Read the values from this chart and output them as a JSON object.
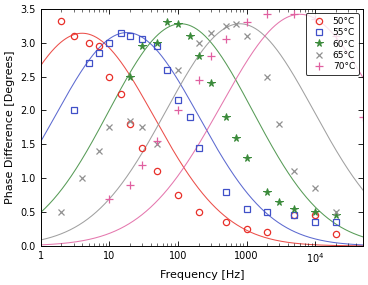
{
  "xlabel": "Frequency [Hz]",
  "ylabel": "Phase Difference [Degrees]",
  "xlim_log": [
    0,
    4.7
  ],
  "ylim": [
    0,
    3.5
  ],
  "yticks": [
    0,
    0.5,
    1.0,
    1.5,
    2.0,
    2.5,
    3.0,
    3.5
  ],
  "colors": [
    "#e8302a",
    "#4050c8",
    "#3a8a3a",
    "#909090",
    "#e060a0"
  ],
  "labels": [
    "50°C",
    "55°C",
    "60°C",
    "65°C",
    "70°C"
  ],
  "markers": [
    "o",
    "s",
    "*",
    "x",
    "+"
  ],
  "peak_freqs": [
    4.0,
    18.0,
    110.0,
    800.0,
    6000.0
  ],
  "peak_vals": [
    3.14,
    3.15,
    3.28,
    3.28,
    3.42
  ],
  "widths": [
    1.05,
    1.05,
    1.05,
    1.08,
    1.15
  ],
  "scatter": [
    {
      "freqs": [
        2,
        3,
        5,
        7,
        10,
        15,
        20,
        30,
        50,
        100,
        200,
        500,
        1000,
        2000,
        5000,
        10000,
        20000
      ],
      "vals": [
        3.32,
        3.1,
        3.0,
        2.95,
        2.5,
        2.25,
        1.8,
        1.45,
        1.1,
        0.75,
        0.5,
        0.35,
        0.25,
        0.2,
        0.45,
        0.45,
        0.18
      ]
    },
    {
      "freqs": [
        3,
        5,
        7,
        10,
        15,
        20,
        30,
        50,
        70,
        100,
        150,
        200,
        500,
        1000,
        2000,
        5000,
        10000,
        20000
      ],
      "vals": [
        2.0,
        2.7,
        2.85,
        3.0,
        3.15,
        3.1,
        3.05,
        2.95,
        2.6,
        2.15,
        1.9,
        1.45,
        0.8,
        0.55,
        0.5,
        0.45,
        0.35,
        0.35
      ]
    },
    {
      "freqs": [
        20,
        30,
        50,
        70,
        100,
        150,
        200,
        300,
        500,
        700,
        1000,
        2000,
        3000,
        5000,
        10000,
        20000
      ],
      "vals": [
        2.5,
        2.95,
        3.0,
        3.3,
        3.28,
        3.1,
        2.8,
        2.4,
        1.9,
        1.6,
        1.3,
        0.8,
        0.65,
        0.55,
        0.5,
        0.45
      ]
    },
    {
      "freqs": [
        2,
        4,
        7,
        10,
        20,
        30,
        50,
        100,
        200,
        300,
        500,
        700,
        1000,
        2000,
        3000,
        5000,
        10000,
        20000
      ],
      "vals": [
        0.5,
        1.0,
        1.4,
        1.75,
        1.85,
        1.75,
        1.5,
        2.6,
        3.0,
        3.15,
        3.25,
        3.28,
        3.1,
        2.5,
        1.8,
        1.1,
        0.85,
        0.5
      ]
    },
    {
      "freqs": [
        10,
        20,
        30,
        50,
        100,
        200,
        300,
        500,
        1000,
        2000,
        5000,
        10000,
        20000,
        50000
      ],
      "vals": [
        0.7,
        0.9,
        1.2,
        1.55,
        2.0,
        2.45,
        2.8,
        3.05,
        3.3,
        3.42,
        3.42,
        3.35,
        3.1,
        1.9
      ]
    }
  ]
}
